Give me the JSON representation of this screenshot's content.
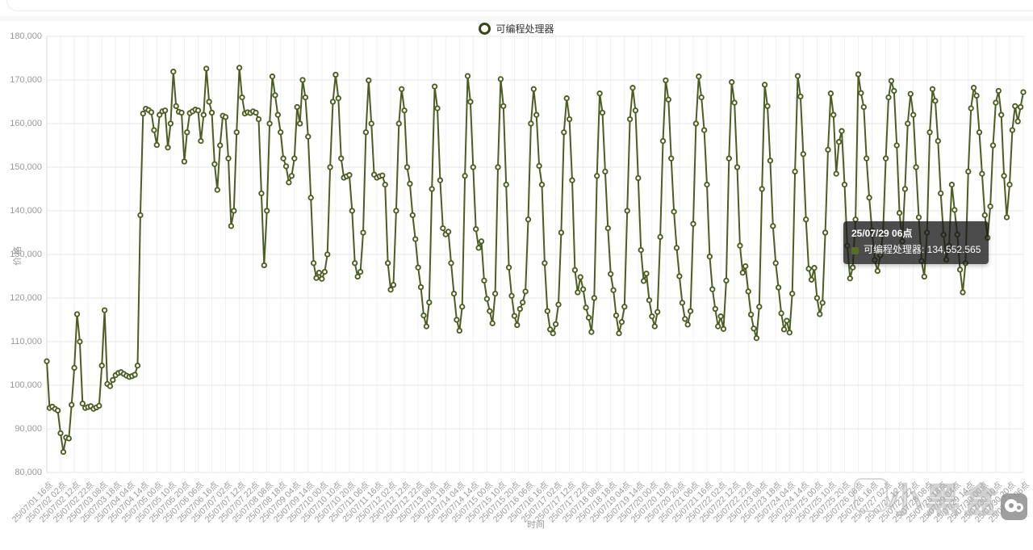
{
  "legend": {
    "label": "可编程处理器",
    "ring_color": "#374712"
  },
  "y_axis": {
    "title": "价格",
    "tick_labels": [
      "180,000",
      "170,000",
      "160,000",
      "150,000",
      "140,000",
      "130,000",
      "120,000",
      "110,000",
      "100,000",
      "90,000",
      "80,000"
    ]
  },
  "x_axis": {
    "title": "时间",
    "tick_labels": [
      "25/07/01 16点",
      "25/07/02 02点",
      "25/07/02 12点",
      "25/07/02 22点",
      "25/07/03 08点",
      "25/07/03 18点",
      "25/07/04 04点",
      "25/07/04 14点",
      "25/07/05 00点",
      "25/07/05 10点",
      "25/07/05 20点",
      "25/07/06 06点",
      "25/07/06 16点",
      "25/07/07 02点",
      "25/07/07 12点",
      "25/07/07 22点",
      "25/07/08 08点",
      "25/07/08 18点",
      "25/07/09 04点",
      "25/07/09 14点",
      "25/07/10 00点",
      "25/07/10 10点",
      "25/07/10 20点",
      "25/07/11 06点",
      "25/07/11 16点",
      "25/07/12 02点",
      "25/07/12 12点",
      "25/07/12 22点",
      "25/07/13 08点",
      "25/07/13 18点",
      "25/07/14 04点",
      "25/07/14 14点",
      "25/07/15 00点",
      "25/07/15 10点",
      "25/07/15 20点",
      "25/07/16 06点",
      "25/07/16 16点",
      "25/07/17 02点",
      "25/07/17 12点",
      "25/07/17 22点",
      "25/07/18 08点",
      "25/07/18 18点",
      "25/07/19 04点",
      "25/07/19 14点",
      "25/07/20 00点",
      "25/07/20 10点",
      "25/07/20 20点",
      "25/07/21 06点",
      "25/07/21 16点",
      "25/07/22 02点",
      "25/07/22 12点",
      "25/07/22 22点",
      "25/07/23 08点",
      "25/07/23 18点",
      "25/07/24 04点",
      "25/07/24 14点",
      "25/07/25 00点",
      "25/07/25 10点",
      "25/07/25 20点",
      "25/07/26 06点",
      "25/07/26 16点",
      "25/07/27 02点",
      "25/07/27 12点",
      "25/07/27 22点",
      "25/07/28 08点",
      "25/07/28 18点",
      "25/07/29 04点",
      "25/07/29 14点",
      "25/07/30 00点",
      "25/07/30 10点",
      "25/07/30 20点",
      "25/07/31 06点"
    ]
  },
  "tooltip": {
    "title": "25/07/29 06点",
    "series_label": "可编程处理器: 134,552.565",
    "marker_color": "#5a6c2a"
  },
  "watermark": {
    "text": "小黑盒"
  },
  "chart_data": {
    "type": "line",
    "series": [
      {
        "name": "可编程处理器"
      }
    ],
    "title": "",
    "xlabel": "时间",
    "ylabel": "价格",
    "ylim": [
      80000,
      180000
    ],
    "y_tick_interval": 10000,
    "grid": true,
    "legend_position": "top",
    "line_color": "#4d5d22",
    "marker": "hollow-circle",
    "x_start": "25/07/01 16点",
    "x_end": "25/07/31 06点",
    "x_step_hours": 2,
    "x_tick_every_n_points": 5,
    "hovered_point": {
      "x": "25/07/29 06点",
      "value": 134552.565
    },
    "values": [
      105500,
      94800,
      95100,
      94600,
      94200,
      89000,
      84700,
      88000,
      87800,
      95500,
      104000,
      116300,
      110000,
      95800,
      94800,
      95000,
      95200,
      94600,
      94900,
      95300,
      104500,
      117200,
      100300,
      99800,
      101200,
      102300,
      102800,
      103000,
      102600,
      102200,
      101900,
      102100,
      102400,
      104500,
      139000,
      162300,
      163400,
      163100,
      162600,
      158500,
      155100,
      162000,
      162800,
      163000,
      154500,
      160000,
      171900,
      164000,
      162700,
      162500,
      151300,
      158000,
      162400,
      162800,
      163200,
      163000,
      156000,
      162000,
      172600,
      165000,
      162500,
      150700,
      144800,
      155000,
      161800,
      161500,
      152000,
      136500,
      140000,
      158000,
      172800,
      166000,
      162300,
      162600,
      162400,
      162800,
      162500,
      161000,
      144000,
      127500,
      140000,
      160000,
      170800,
      166500,
      162000,
      158000,
      152000,
      150200,
      146500,
      148000,
      152000,
      163800,
      160000,
      170000,
      166000,
      157000,
      143000,
      128000,
      124600,
      125800,
      124400,
      126000,
      130000,
      150000,
      165000,
      171200,
      165800,
      152000,
      147600,
      147900,
      148200,
      140000,
      128000,
      124900,
      126000,
      135000,
      158000,
      169900,
      160000,
      148300,
      147600,
      147900,
      148100,
      146000,
      128000,
      121900,
      123000,
      140000,
      160000,
      167900,
      163000,
      150000,
      146200,
      139000,
      133500,
      127000,
      122500,
      116000,
      113500,
      119000,
      145000,
      168500,
      163500,
      147000,
      136000,
      134600,
      135200,
      128000,
      121000,
      115000,
      112500,
      118000,
      148000,
      170900,
      165000,
      150000,
      135800,
      131500,
      133000,
      124000,
      119800,
      117000,
      114200,
      121000,
      150000,
      170200,
      164000,
      146000,
      127000,
      120500,
      115900,
      113800,
      117500,
      119000,
      121500,
      138000,
      160000,
      167900,
      162000,
      150300,
      146000,
      128000,
      117000,
      112800,
      111900,
      114000,
      118500,
      135000,
      158000,
      165800,
      161000,
      147000,
      126400,
      121300,
      124800,
      122000,
      117800,
      115500,
      112200,
      120000,
      148000,
      166900,
      162500,
      149000,
      136000,
      125500,
      121800,
      116000,
      111900,
      114500,
      118000,
      140000,
      161000,
      168200,
      163000,
      147500,
      131000,
      123900,
      125600,
      119500,
      115800,
      113500,
      116800,
      134000,
      156000,
      169900,
      165500,
      152000,
      139800,
      131500,
      125000,
      118900,
      115200,
      113900,
      117000,
      137000,
      160000,
      170800,
      166000,
      158500,
      146000,
      129500,
      122000,
      117500,
      113500,
      115800,
      112900,
      124000,
      152000,
      169500,
      164800,
      150000,
      132000,
      125800,
      127300,
      121500,
      116200,
      113000,
      110800,
      118000,
      145000,
      168900,
      164000,
      151500,
      136500,
      128000,
      122400,
      116500,
      112800,
      114800,
      112100,
      121000,
      149000,
      170900,
      166200,
      153000,
      138000,
      126700,
      124200,
      126900,
      120000,
      116300,
      118900,
      135000,
      154000,
      166900,
      162000,
      148500,
      155800,
      158300,
      146000,
      132000,
      124500,
      127000,
      138000,
      171300,
      167000,
      163800,
      152000,
      143000,
      135500,
      128700,
      126200,
      129800,
      135000,
      152000,
      166000,
      169800,
      167500,
      155000,
      139500,
      133000,
      145000,
      160000,
      166800,
      162000,
      150000,
      138500,
      128500,
      124900,
      135000,
      158000,
      167900,
      165200,
      156000,
      144000,
      134500,
      128800,
      132000,
      146000,
      140200,
      134552.565,
      126500,
      121300,
      128000,
      149000,
      163500,
      168200,
      166400,
      158000,
      148500,
      139000,
      133800,
      141000,
      155000,
      164800,
      167500,
      162000,
      148000,
      138500,
      146000,
      158500,
      164000,
      160500,
      163800,
      167200
    ]
  }
}
